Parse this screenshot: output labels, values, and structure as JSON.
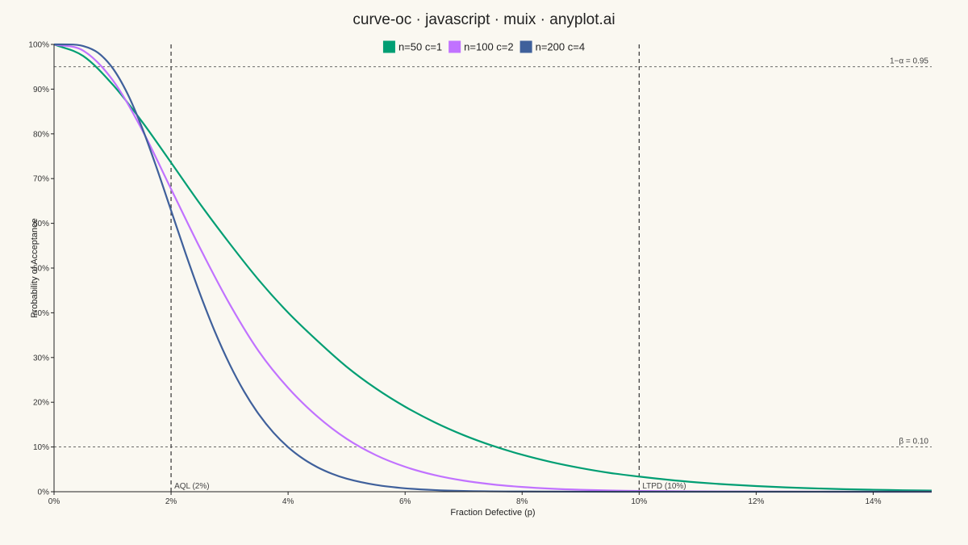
{
  "chart_data": {
    "type": "line",
    "title": "curve-oc · javascript · muix · anyplot.ai",
    "xlabel": "Fraction Defective (p)",
    "ylabel": "Probability of Acceptance",
    "xlim": [
      0,
      0.15
    ],
    "ylim": [
      0,
      1
    ],
    "x_ticks": [
      {
        "value": 0,
        "label": "0%"
      },
      {
        "value": 0.02,
        "label": "2%"
      },
      {
        "value": 0.04,
        "label": "4%"
      },
      {
        "value": 0.06,
        "label": "6%"
      },
      {
        "value": 0.08,
        "label": "8%"
      },
      {
        "value": 0.1,
        "label": "10%"
      },
      {
        "value": 0.12,
        "label": "12%"
      },
      {
        "value": 0.14,
        "label": "14%"
      }
    ],
    "y_ticks": [
      {
        "value": 0,
        "label": "0%"
      },
      {
        "value": 0.1,
        "label": "10%"
      },
      {
        "value": 0.2,
        "label": "20%"
      },
      {
        "value": 0.3,
        "label": "30%"
      },
      {
        "value": 0.4,
        "label": "40%"
      },
      {
        "value": 0.5,
        "label": "50%"
      },
      {
        "value": 0.6,
        "label": "60%"
      },
      {
        "value": 0.7,
        "label": "70%"
      },
      {
        "value": 0.8,
        "label": "80%"
      },
      {
        "value": 0.9,
        "label": "90%"
      },
      {
        "value": 1.0,
        "label": "100%"
      }
    ],
    "grid": false,
    "legend_position": "top-center",
    "series": [
      {
        "name": "n=50 c=1",
        "color": "#009E73",
        "x": [
          0,
          0.005,
          0.01,
          0.015,
          0.02,
          0.025,
          0.03,
          0.035,
          0.04,
          0.045,
          0.05,
          0.055,
          0.06,
          0.065,
          0.07,
          0.075,
          0.08,
          0.085,
          0.09,
          0.095,
          0.1,
          0.105,
          0.11,
          0.115,
          0.12,
          0.125,
          0.13,
          0.135,
          0.14,
          0.145,
          0.15
        ],
        "y": [
          1.0,
          0.9739,
          0.9106,
          0.828,
          0.7358,
          0.6426,
          0.5553,
          0.4731,
          0.4005,
          0.3374,
          0.2794,
          0.2309,
          0.19,
          0.1555,
          0.1265,
          0.1025,
          0.0826,
          0.0662,
          0.0529,
          0.042,
          0.0338,
          0.0266,
          0.0208,
          0.0162,
          0.0126,
          0.0097,
          0.0075,
          0.0057,
          0.0044,
          0.0033,
          0.0025
        ]
      },
      {
        "name": "n=100 c=2",
        "color": "#C172FF",
        "x": [
          0,
          0.005,
          0.01,
          0.015,
          0.02,
          0.025,
          0.03,
          0.035,
          0.04,
          0.045,
          0.05,
          0.055,
          0.06,
          0.065,
          0.07,
          0.075,
          0.08,
          0.085,
          0.09,
          0.095,
          0.1,
          0.11,
          0.12,
          0.13,
          0.14,
          0.15
        ],
        "y": [
          1.0,
          0.9859,
          0.9206,
          0.8101,
          0.6767,
          0.5435,
          0.4198,
          0.3136,
          0.2321,
          0.1682,
          0.1183,
          0.0818,
          0.0557,
          0.0374,
          0.0248,
          0.0163,
          0.0106,
          0.0068,
          0.0043,
          0.0027,
          0.0017,
          0.0007,
          0.0003,
          0.0001,
          0.0,
          0.0
        ]
      },
      {
        "name": "n=200 c=4",
        "color": "#3F609B",
        "x": [
          0,
          0.0025,
          0.005,
          0.0075,
          0.01,
          0.0125,
          0.015,
          0.0175,
          0.02,
          0.0225,
          0.025,
          0.0275,
          0.03,
          0.0325,
          0.035,
          0.0375,
          0.04,
          0.0425,
          0.045,
          0.0475,
          0.05,
          0.055,
          0.06,
          0.065,
          0.07,
          0.08,
          0.09,
          0.1,
          0.12,
          0.15
        ],
        "y": [
          1.0,
          0.9999,
          0.9963,
          0.9814,
          0.9473,
          0.8912,
          0.8153,
          0.7254,
          0.6288,
          0.5321,
          0.4405,
          0.3575,
          0.2851,
          0.2237,
          0.173,
          0.1321,
          0.0996,
          0.0743,
          0.0549,
          0.0402,
          0.0292,
          0.0152,
          0.0076,
          0.0037,
          0.0017,
          0.0004,
          0.0001,
          0.0,
          0.0,
          0.0
        ]
      }
    ],
    "reference_lines": [
      {
        "axis": "x",
        "value": 0.02,
        "label": "AQL (2%)"
      },
      {
        "axis": "x",
        "value": 0.1,
        "label": "LTPD (10%)"
      },
      {
        "axis": "y",
        "value": 0.95,
        "label": "1−α = 0.95"
      },
      {
        "axis": "y",
        "value": 0.1,
        "label": "β = 0.10"
      }
    ]
  }
}
